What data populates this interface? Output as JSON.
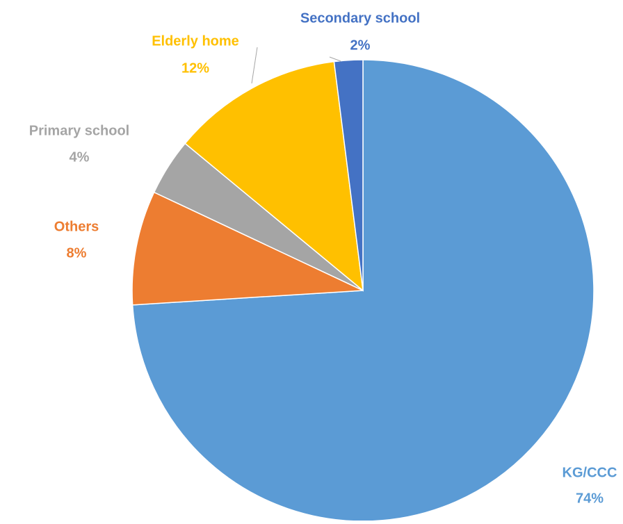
{
  "chart_data": {
    "type": "pie",
    "categories": [
      "KG/CCC",
      "Others",
      "Primary school",
      "Elderly home",
      "Secondary school"
    ],
    "values": [
      74,
      8,
      4,
      12,
      2
    ],
    "value_labels": [
      "74%",
      "8%",
      "4%",
      "12%",
      "2%"
    ],
    "colors": [
      "#5b9bd5",
      "#ed7d31",
      "#a5a5a5",
      "#ffc000",
      "#4472c4"
    ]
  }
}
